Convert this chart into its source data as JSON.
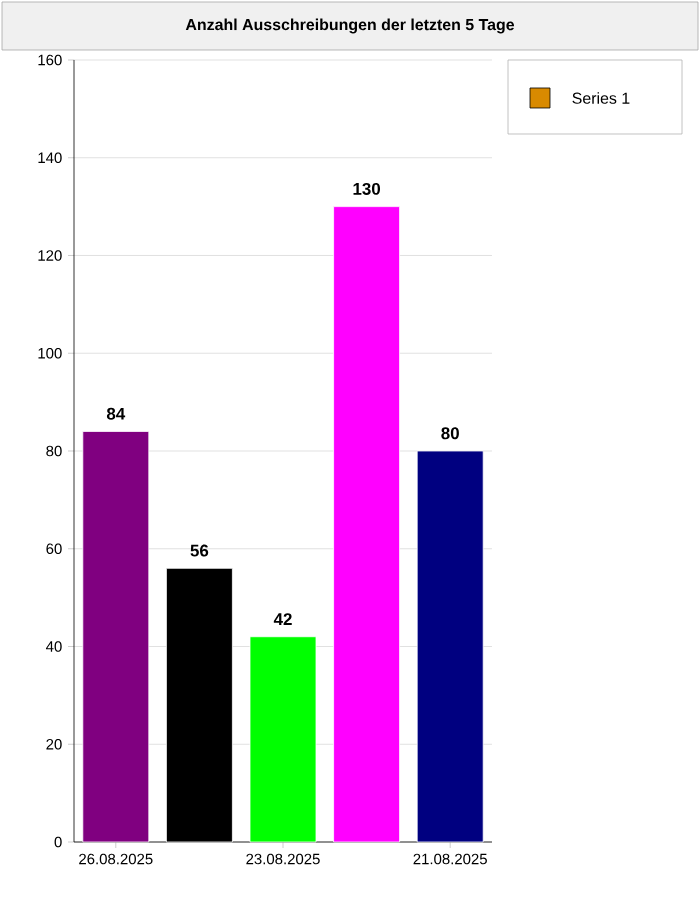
{
  "chart_data": {
    "type": "bar",
    "title": "Anzahl Ausschreibungen der letzten 5 Tage",
    "categories": [
      "26.08.2025",
      null,
      "23.08.2025",
      null,
      "21.08.2025"
    ],
    "series": [
      {
        "name": "Series 1",
        "color": "#d98a00",
        "colors": [
          "#800080",
          "#000000",
          "#00ff00",
          "#ff00ff",
          "#000080"
        ],
        "values": [
          84,
          56,
          42,
          130,
          80
        ]
      }
    ],
    "ylim": [
      0,
      160
    ],
    "yticks": [
      0,
      20,
      40,
      60,
      80,
      100,
      120,
      140,
      160
    ],
    "grid": "y",
    "legend": "top right",
    "data_labels": true
  }
}
